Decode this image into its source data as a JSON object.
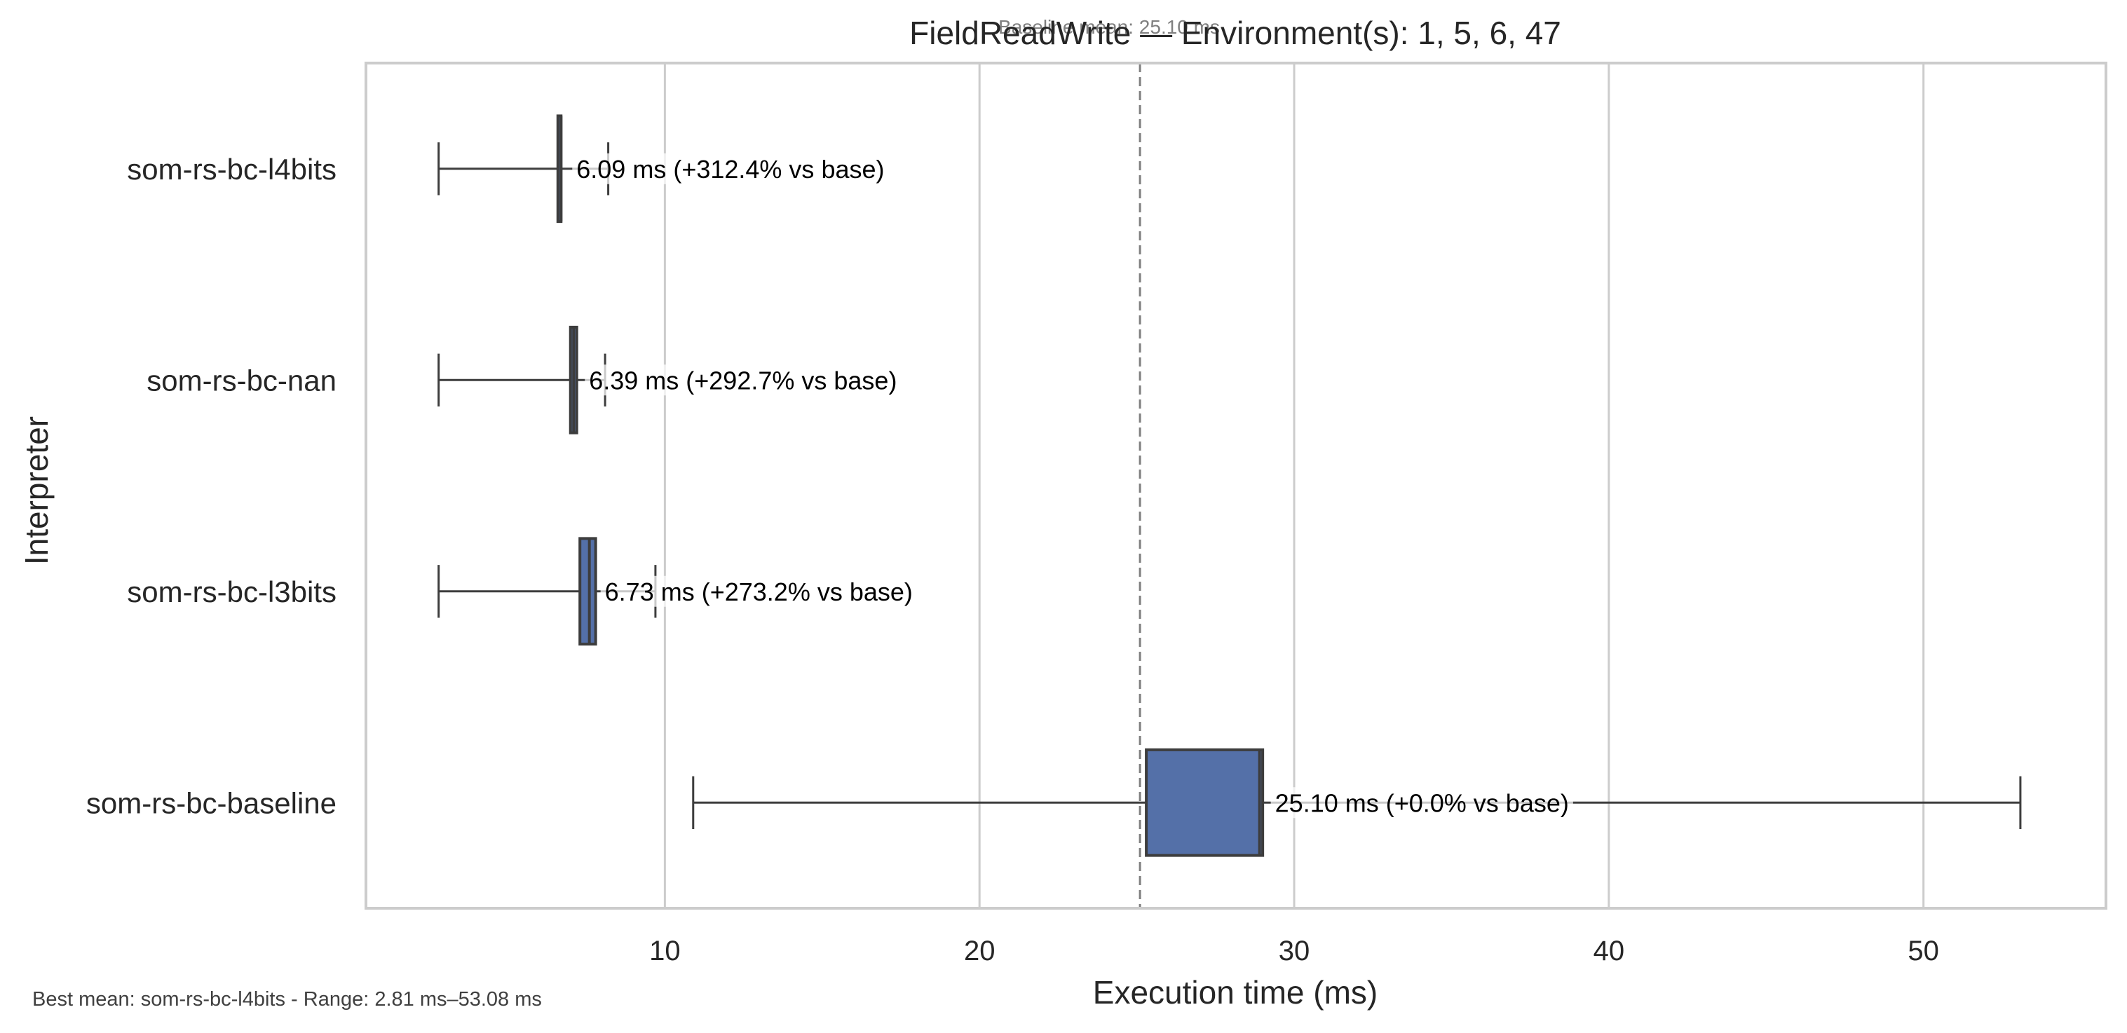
{
  "chart_data": {
    "type": "box",
    "orientation": "horizontal",
    "title": "FieldReadWrite — Environment(s): 1, 5, 6, 47",
    "baseline_text": "Baseline mean: 25.10 ms",
    "xlabel": "Execution time (ms)",
    "ylabel": "Interpreter",
    "xlim": [
      0.5,
      55.8
    ],
    "xticks": [
      10,
      20,
      30,
      40,
      50
    ],
    "xtick_labels": [
      "10",
      "20",
      "30",
      "40",
      "50"
    ],
    "grid": "vertical",
    "baseline_value": 25.1,
    "box_color": "#5470a8",
    "footer": "Best mean: som-rs-bc-l4bits - Range: 2.81 ms–53.08 ms",
    "categories": [
      "som-rs-bc-l4bits",
      "som-rs-bc-nan",
      "som-rs-bc-l3bits",
      "som-rs-bc-baseline"
    ],
    "series": [
      {
        "category": "som-rs-bc-l4bits",
        "whisker_low": 2.81,
        "q1": 6.6,
        "median": 6.7,
        "q3": 6.7,
        "whisker_high": 8.2,
        "annotation": "6.09 ms  (+312.4% vs base)"
      },
      {
        "category": "som-rs-bc-nan",
        "whisker_low": 2.81,
        "q1": 7.0,
        "median": 7.1,
        "q3": 7.2,
        "whisker_high": 8.1,
        "annotation": "6.39 ms  (+292.7% vs base)"
      },
      {
        "category": "som-rs-bc-l3bits",
        "whisker_low": 2.81,
        "q1": 7.3,
        "median": 7.6,
        "q3": 7.8,
        "whisker_high": 9.7,
        "annotation": "6.73 ms  (+273.2% vs base)"
      },
      {
        "category": "som-rs-bc-baseline",
        "whisker_low": 10.9,
        "q1": 25.3,
        "median": 28.9,
        "q3": 29.0,
        "whisker_high": 53.08,
        "annotation": "25.10 ms  (+0.0% vs base)"
      }
    ]
  }
}
